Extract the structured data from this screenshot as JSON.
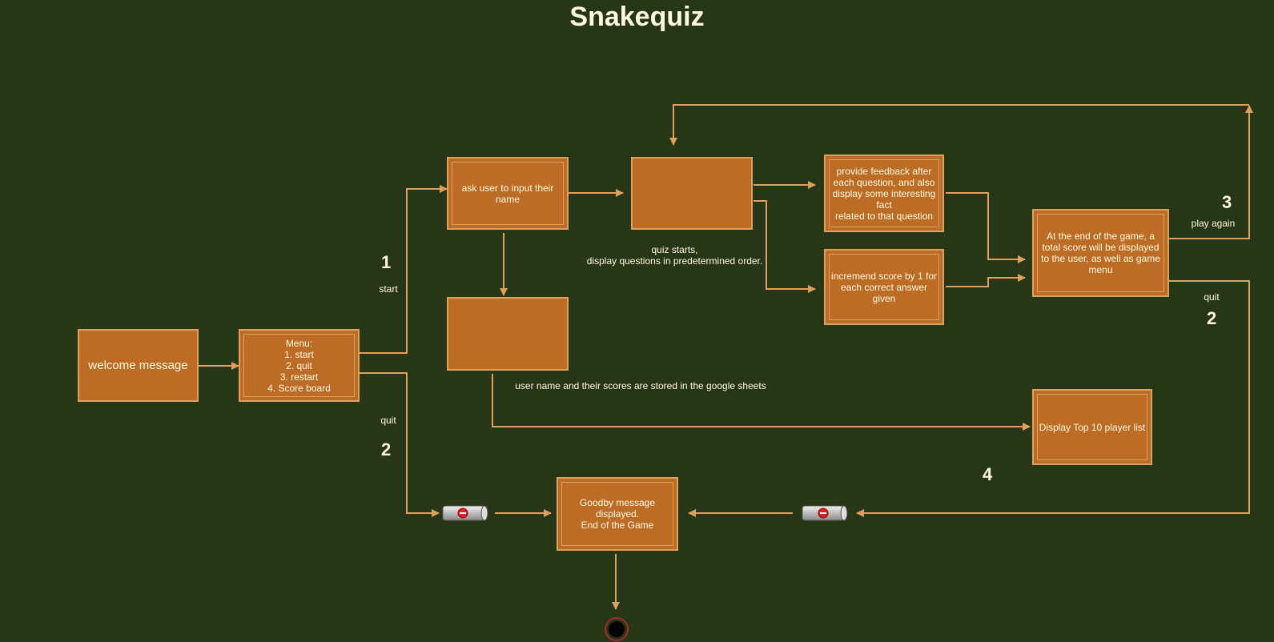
{
  "title": "Snakequiz",
  "nodes": {
    "welcome": "welcome message",
    "menu": "Menu:\n1. start\n2. quit\n3. restart\n4. Score board",
    "ask_name": "ask user to input their name",
    "feedback": "provide feedback after each question, and also display some interesting fact\nrelated to that question",
    "increment": "incremend score by 1 for each correct answer given",
    "end_score": "At the end of the game, a total score will be displayed to the user, as well as game menu",
    "top10": "Display Top 10 player list",
    "goodbye": "Goodby message displayed.\nEnd of the Game"
  },
  "labels": {
    "quiz_starts": "quiz starts,\ndisplay questions in predetermined order.",
    "storage": "user name and their scores are stored in the google sheets",
    "start": "start",
    "quit_left": "quit",
    "play_again": "play again",
    "quit_right": "quit"
  },
  "numbers": {
    "start": "1",
    "quit_left": "2",
    "play_again": "3",
    "quit_right": "2",
    "scoreboard": "4"
  },
  "colors": {
    "background": "#283618",
    "box_fill": "#bc6c25",
    "box_border": "#dda15e",
    "text": "#fefae0",
    "terminal": "#a52a2a"
  }
}
